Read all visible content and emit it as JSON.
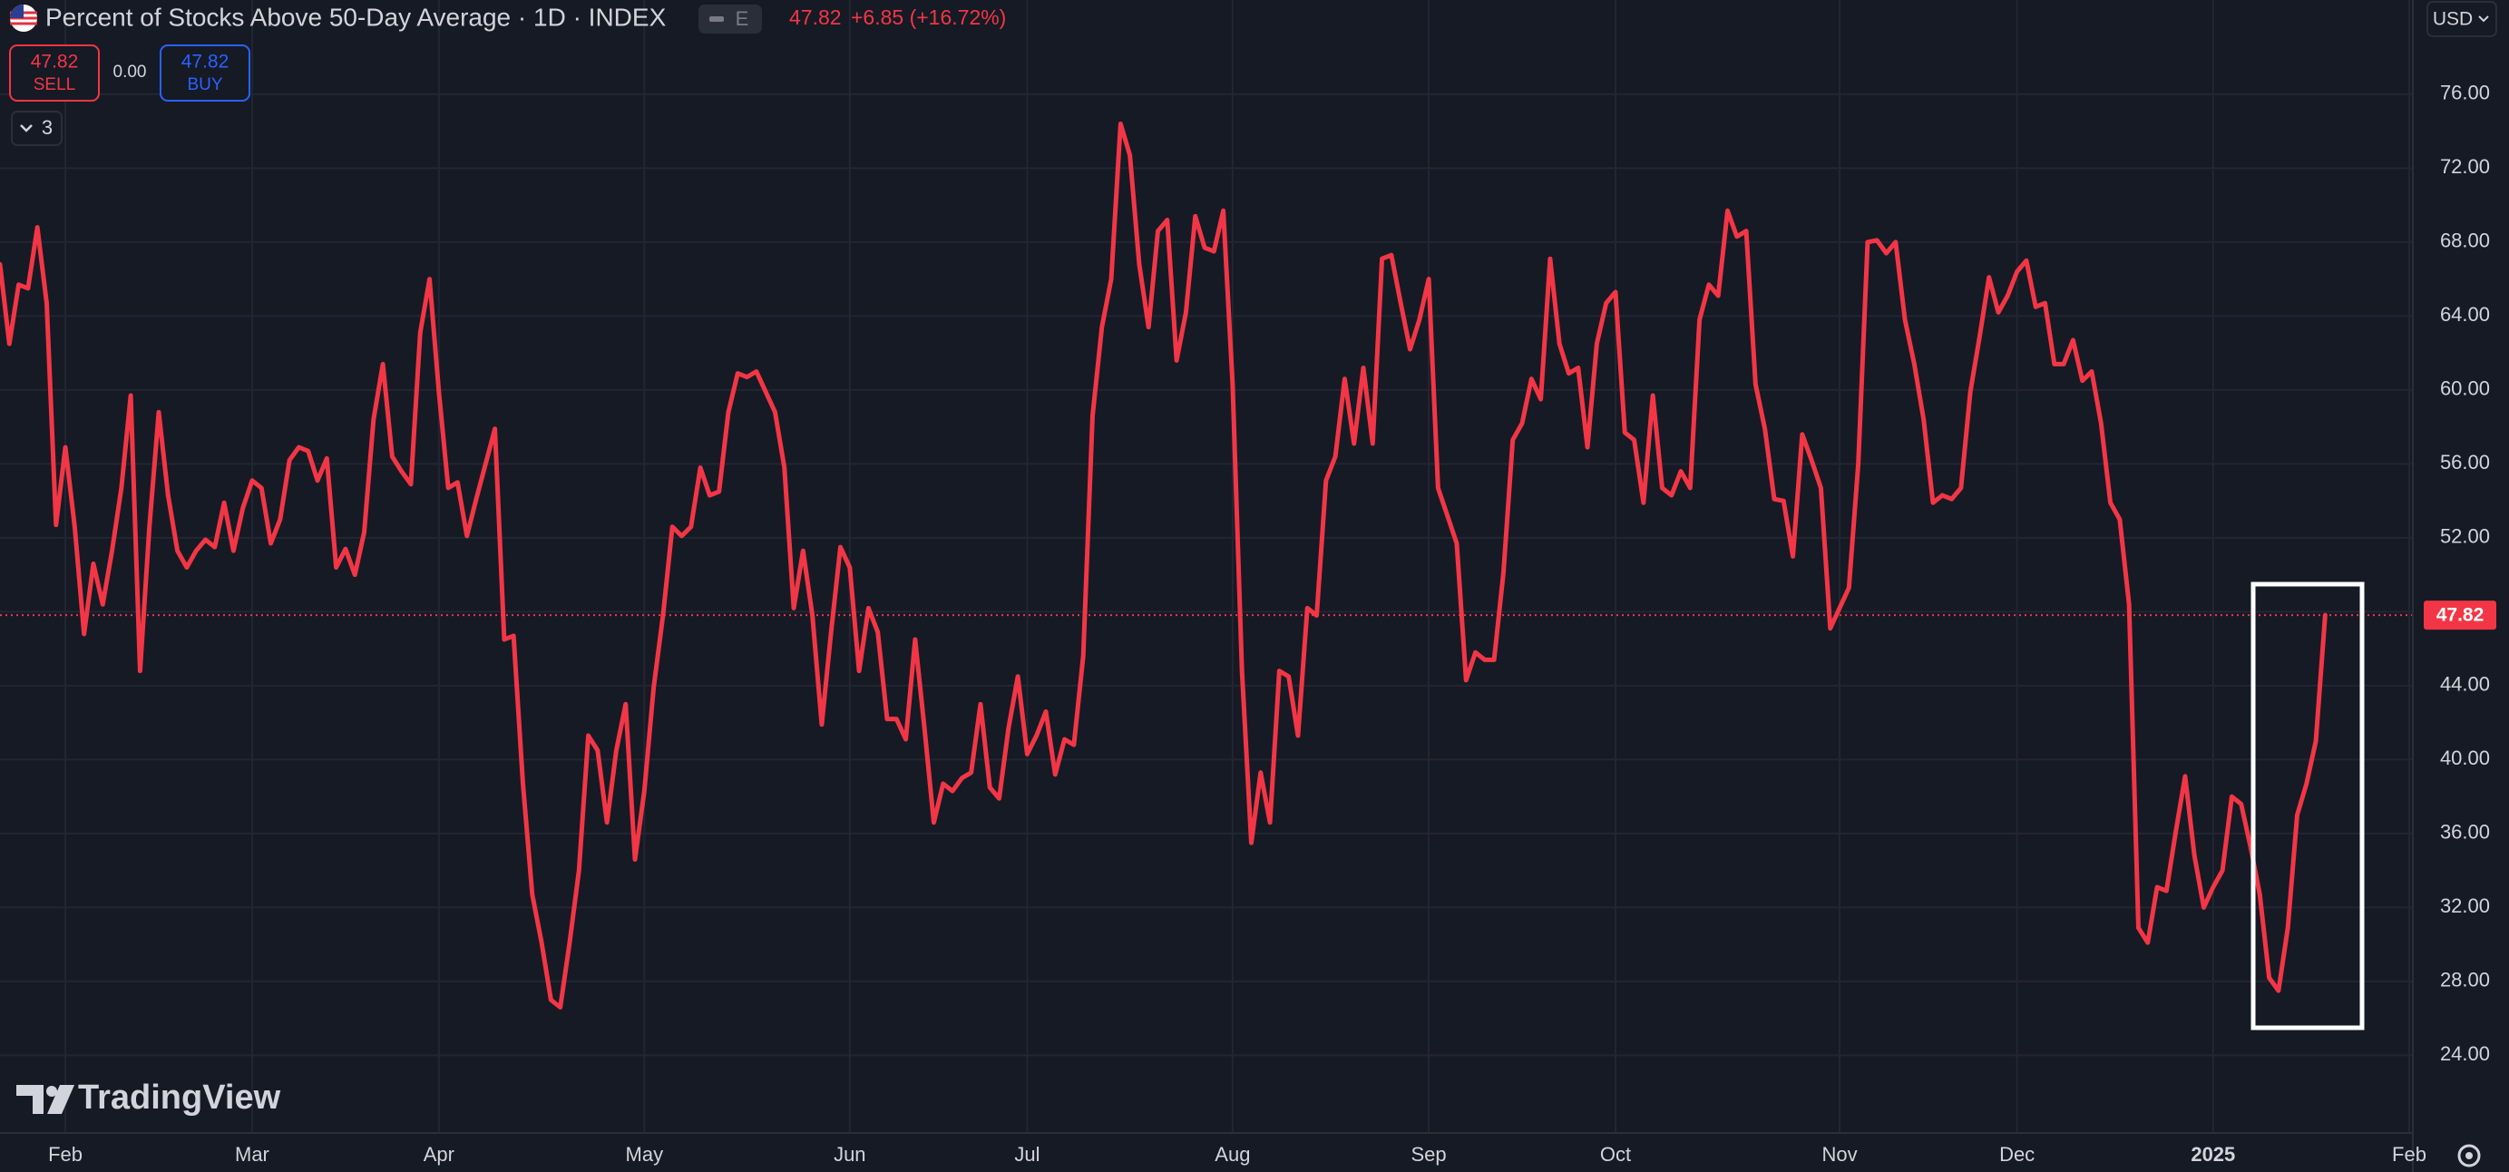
{
  "header": {
    "title": "Percent of Stocks Above 50-Day Average · 1D · INDEX",
    "badge": "E",
    "last": 47.82,
    "change": "+6.85 (+16.72%)",
    "sell_price": 47.82,
    "sell_label": "SELL",
    "spread": "0.00",
    "buy_price": 47.82,
    "buy_label": "BUY",
    "indicator_count": "3",
    "currency": "USD"
  },
  "logo": "TradingView",
  "chart_data": {
    "type": "line",
    "color": "#f23645",
    "grid": true,
    "categories": [
      null,
      null,
      null,
      null,
      null,
      null,
      null,
      "Feb",
      null,
      null,
      null,
      null,
      null,
      null,
      null,
      null,
      null,
      null,
      null,
      null,
      null,
      null,
      null,
      null,
      null,
      null,
      null,
      "Mar",
      null,
      null,
      null,
      null,
      null,
      null,
      null,
      null,
      null,
      null,
      null,
      null,
      null,
      null,
      null,
      null,
      null,
      null,
      null,
      "Apr",
      null,
      null,
      null,
      null,
      null,
      null,
      null,
      null,
      null,
      null,
      null,
      null,
      null,
      null,
      null,
      null,
      null,
      null,
      null,
      null,
      null,
      "May",
      null,
      null,
      null,
      null,
      null,
      null,
      null,
      null,
      null,
      null,
      null,
      null,
      null,
      null,
      null,
      null,
      null,
      null,
      null,
      null,
      null,
      "Jun",
      null,
      null,
      null,
      null,
      null,
      null,
      null,
      null,
      null,
      null,
      null,
      null,
      null,
      null,
      null,
      null,
      null,
      null,
      "Jul",
      null,
      null,
      null,
      null,
      null,
      null,
      null,
      null,
      null,
      null,
      null,
      null,
      null,
      null,
      null,
      null,
      null,
      null,
      null,
      null,
      null,
      "Aug",
      null,
      null,
      null,
      null,
      null,
      null,
      null,
      null,
      null,
      null,
      null,
      null,
      null,
      null,
      null,
      null,
      null,
      null,
      null,
      null,
      "Sep",
      null,
      null,
      null,
      null,
      null,
      null,
      null,
      null,
      null,
      null,
      null,
      null,
      null,
      null,
      null,
      null,
      null,
      null,
      null,
      "Oct",
      null,
      null,
      null,
      null,
      null,
      null,
      null,
      null,
      null,
      null,
      null,
      null,
      null,
      null,
      null,
      null,
      null,
      null,
      null,
      null,
      null,
      null,
      null,
      "Nov",
      null,
      null,
      null,
      null,
      null,
      null,
      null,
      null,
      null,
      null,
      null,
      null,
      null,
      null,
      null,
      null,
      null,
      null,
      "Dec",
      null,
      null,
      null,
      null,
      null,
      null,
      null,
      null,
      null,
      null,
      null,
      null,
      null,
      null,
      null,
      null,
      null,
      null,
      null,
      null,
      "2025",
      null,
      null,
      null,
      null,
      null,
      null,
      null,
      null,
      null,
      null,
      null,
      null,
      null,
      null,
      null,
      null,
      null,
      null,
      null,
      null,
      "Feb"
    ],
    "values": [
      66.8,
      62.5,
      65.7,
      65.5,
      68.8,
      64.7,
      52.7,
      56.9,
      52.6,
      46.8,
      50.6,
      48.4,
      51.3,
      54.7,
      59.7,
      44.8,
      52.6,
      58.8,
      54.3,
      51.3,
      50.4,
      51.3,
      51.9,
      51.5,
      53.9,
      51.3,
      53.6,
      55.1,
      54.7,
      51.7,
      53.0,
      56.2,
      56.9,
      56.7,
      55.1,
      56.3,
      50.4,
      51.4,
      50.0,
      52.3,
      58.4,
      61.4,
      56.4,
      55.6,
      54.9,
      63.1,
      66.0,
      59.9,
      54.7,
      55.0,
      52.1,
      54.1,
      56.0,
      57.9,
      46.5,
      46.7,
      38.7,
      32.7,
      30.1,
      27.0,
      26.6,
      30.1,
      34.0,
      41.3,
      40.5,
      36.6,
      40.5,
      43.0,
      34.6,
      38.3,
      43.9,
      47.8,
      52.6,
      52.1,
      52.6,
      55.8,
      54.3,
      54.5,
      58.8,
      60.9,
      60.7,
      61.0,
      59.9,
      58.8,
      55.8,
      48.2,
      51.3,
      47.8,
      41.9,
      46.9,
      51.5,
      50.4,
      44.8,
      48.2,
      46.9,
      42.2,
      42.2,
      41.1,
      46.5,
      41.7,
      36.6,
      38.7,
      38.3,
      39.0,
      39.3,
      43.0,
      38.5,
      37.9,
      41.7,
      44.5,
      40.3,
      41.3,
      42.6,
      39.2,
      41.1,
      40.8,
      45.6,
      58.6,
      63.4,
      66.0,
      74.4,
      72.7,
      66.8,
      63.4,
      68.6,
      69.2,
      61.6,
      64.2,
      69.4,
      67.7,
      67.5,
      69.7,
      60.3,
      44.8,
      35.5,
      39.3,
      36.6,
      44.8,
      44.5,
      41.3,
      48.2,
      47.8,
      55.1,
      56.4,
      60.6,
      57.1,
      61.2,
      57.1,
      67.1,
      67.3,
      64.7,
      62.2,
      63.8,
      66.0,
      54.7,
      53.2,
      51.7,
      44.3,
      45.8,
      45.4,
      45.4,
      50.1,
      57.3,
      58.2,
      60.6,
      59.5,
      67.1,
      62.5,
      60.9,
      61.2,
      56.9,
      62.5,
      64.7,
      65.3,
      57.7,
      57.3,
      53.9,
      59.7,
      54.7,
      54.3,
      55.6,
      54.7,
      63.8,
      65.7,
      65.1,
      69.7,
      68.3,
      68.6,
      60.3,
      57.9,
      54.1,
      54.0,
      51.0,
      57.6,
      56.2,
      54.7,
      47.1,
      48.2,
      49.3,
      56.0,
      68.0,
      68.1,
      67.4,
      68.0,
      63.8,
      61.4,
      58.4,
      53.9,
      54.3,
      54.1,
      54.7,
      59.9,
      62.9,
      66.1,
      64.2,
      65.1,
      66.4,
      67.0,
      64.5,
      64.7,
      61.4,
      61.4,
      62.7,
      60.5,
      61.0,
      58.2,
      53.9,
      53.0,
      48.4,
      30.9,
      30.1,
      33.1,
      32.9,
      36.1,
      39.1,
      34.8,
      32.0,
      33.1,
      34.0,
      38.0,
      37.6,
      35.3,
      32.7,
      28.2,
      27.5,
      30.9,
      37.0,
      38.7,
      41.0,
      47.82,
      null,
      null,
      null,
      null,
      null,
      null,
      null,
      null,
      null
    ],
    "ylim": [
      19.8,
      81.1
    ],
    "yticks": [
      {
        "value": 24,
        "label": "24.00"
      },
      {
        "value": 28,
        "label": "28.00"
      },
      {
        "value": 32,
        "label": "32.00"
      },
      {
        "value": 36,
        "label": "36.00"
      },
      {
        "value": 40,
        "label": "40.00"
      },
      {
        "value": 44,
        "label": "44.00"
      },
      {
        "value": 48,
        "label": "48.00"
      },
      {
        "value": 52,
        "label": "52.00"
      },
      {
        "value": 56,
        "label": "56.00"
      },
      {
        "value": 60,
        "label": "60.00"
      },
      {
        "value": 64,
        "label": "64.00"
      },
      {
        "value": 68,
        "label": "68.00"
      },
      {
        "value": 72,
        "label": "72.00"
      },
      {
        "value": 76,
        "label": "76.00"
      }
    ]
  }
}
